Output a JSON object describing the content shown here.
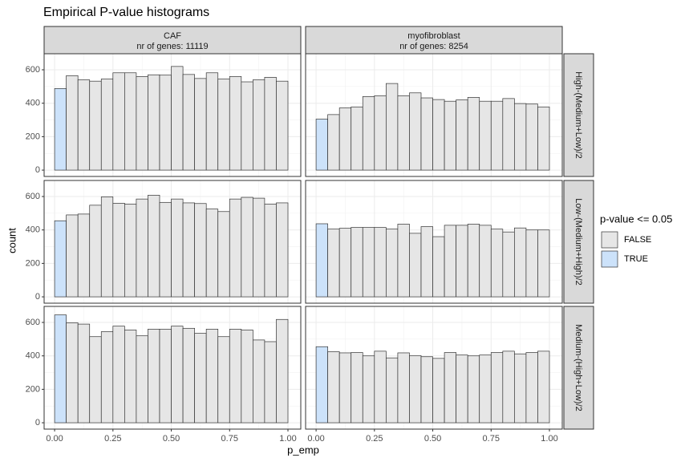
{
  "chart_data": {
    "type": "histogram",
    "title": "Empirical P-value histograms",
    "x_label": "p_emp",
    "y_label": "count",
    "legend_title": "p-value <= 0.05",
    "series": [
      {
        "name": "FALSE",
        "color": "#e6e6e6"
      },
      {
        "name": "TRUE",
        "color": "#cce2fa"
      }
    ],
    "bar_series": [
      1,
      0,
      0,
      0,
      0,
      0,
      0,
      0,
      0,
      0,
      0,
      0,
      0,
      0,
      0,
      0,
      0,
      0,
      0,
      0
    ],
    "bins": [
      0,
      0.05,
      0.1,
      0.15,
      0.2,
      0.25,
      0.3,
      0.35,
      0.4,
      0.45,
      0.5,
      0.55,
      0.6,
      0.65,
      0.7,
      0.75,
      0.8,
      0.85,
      0.9,
      0.95,
      1
    ],
    "xlim": [
      -0.045,
      1.055
    ],
    "xticks": [
      {
        "value": 0,
        "label": "0.00"
      },
      0.25,
      {
        "value": 0.5,
        "label": "0.50"
      },
      0.75,
      {
        "value": 1,
        "label": "1.00"
      }
    ],
    "ylim": [
      -38,
      696
    ],
    "yticks": [
      0,
      200,
      400,
      600
    ],
    "grid": true,
    "columns": [
      {
        "name": "CAF",
        "subtitle": "nr of genes: 11119"
      },
      {
        "name": "myofibroblast",
        "subtitle": "nr of genes: 8254"
      }
    ],
    "rows": [
      {
        "label": "High-(Medium+Low)/2",
        "panels": [
          {
            "values": [
              488,
              565,
              540,
              532,
              545,
              582,
              582,
              560,
              570,
              568,
              620,
              572,
              548,
              582,
              545,
              560,
              528,
              540,
              555,
              532
            ]
          },
          {
            "values": [
              305,
              332,
              372,
              378,
              440,
              445,
              518,
              445,
              462,
              432,
              422,
              412,
              420,
              435,
              412,
              412,
              428,
              398,
              395,
              378
            ]
          }
        ]
      },
      {
        "label": "Low-(Medium+High)/2",
        "panels": [
          {
            "values": [
              455,
              490,
              495,
              548,
              598,
              560,
              555,
              585,
              608,
              565,
              585,
              562,
              558,
              525,
              510,
              585,
              595,
              590,
              555,
              562
            ]
          },
          {
            "values": [
              437,
              405,
              410,
              415,
              415,
              415,
              405,
              435,
              380,
              420,
              360,
              428,
              428,
              435,
              428,
              405,
              388,
              412,
              400,
              400
            ]
          }
        ]
      },
      {
        "label": "Medium-(High+Low)/2",
        "panels": [
          {
            "values": [
              645,
              598,
              590,
              515,
              545,
              578,
              555,
              520,
              560,
              560,
              578,
              565,
              535,
              560,
              515,
              560,
              555,
              495,
              485,
              618
            ]
          },
          {
            "values": [
              455,
              425,
              418,
              420,
              400,
              428,
              388,
              418,
              402,
              395,
              385,
              420,
              405,
              400,
              405,
              420,
              428,
              412,
              420,
              428
            ]
          }
        ]
      }
    ]
  }
}
